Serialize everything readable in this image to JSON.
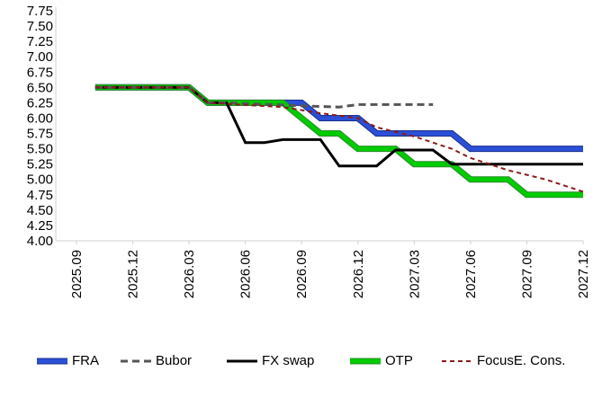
{
  "chart_data": {
    "type": "line",
    "title": "",
    "xlabel": "",
    "ylabel": "",
    "ylim": [
      4.0,
      7.75
    ],
    "yticks": [
      "4.00",
      "4.25",
      "4.50",
      "4.75",
      "5.00",
      "5.25",
      "5.50",
      "5.75",
      "6.00",
      "6.25",
      "6.50",
      "6.75",
      "7.00",
      "7.25",
      "7.50",
      "7.75"
    ],
    "xticks": [
      "2025.09",
      "2025.12",
      "2026.03",
      "2026.06",
      "2026.09",
      "2026.12",
      "2027.03",
      "2027.06",
      "2027.09",
      "2027.12"
    ],
    "grid": false,
    "legend_position": "bottom",
    "series": [
      {
        "name": "FRA",
        "color": "#2b4fd6",
        "style": "solid-thick",
        "points": [
          [
            "2025.10",
            6.5
          ],
          [
            "2026.03",
            6.5
          ],
          [
            "2026.04",
            6.25
          ],
          [
            "2026.09",
            6.25
          ],
          [
            "2026.10",
            6.0
          ],
          [
            "2026.12",
            6.0
          ],
          [
            "2027.01",
            5.75
          ],
          [
            "2027.05",
            5.75
          ],
          [
            "2027.06",
            5.5
          ],
          [
            "2027.12",
            5.5
          ]
        ]
      },
      {
        "name": "Bubor",
        "color": "#555555",
        "style": "dashed",
        "points": [
          [
            "2025.10",
            6.5
          ],
          [
            "2026.03",
            6.5
          ],
          [
            "2026.04",
            6.25
          ],
          [
            "2026.05",
            6.25
          ],
          [
            "2026.09",
            6.2
          ],
          [
            "2026.11",
            6.18
          ],
          [
            "2026.12",
            6.22
          ],
          [
            "2027.04",
            6.22
          ]
        ]
      },
      {
        "name": "FX swap",
        "color": "#000000",
        "style": "solid",
        "points": [
          [
            "2025.10",
            6.5
          ],
          [
            "2026.03",
            6.5
          ],
          [
            "2026.04",
            6.25
          ],
          [
            "2026.05",
            6.25
          ],
          [
            "2026.06",
            5.6
          ],
          [
            "2026.07",
            5.6
          ],
          [
            "2026.08",
            5.65
          ],
          [
            "2026.10",
            5.65
          ],
          [
            "2026.11",
            5.22
          ],
          [
            "2027.01",
            5.22
          ],
          [
            "2027.02",
            5.48
          ],
          [
            "2027.04",
            5.48
          ],
          [
            "2027.05",
            5.25
          ],
          [
            "2027.12",
            5.25
          ]
        ]
      },
      {
        "name": "OTP",
        "color": "#00cc00",
        "style": "solid-thick",
        "points": [
          [
            "2025.10",
            6.5
          ],
          [
            "2026.03",
            6.5
          ],
          [
            "2026.04",
            6.25
          ],
          [
            "2026.08",
            6.25
          ],
          [
            "2026.10",
            5.75
          ],
          [
            "2026.11",
            5.75
          ],
          [
            "2026.12",
            5.5
          ],
          [
            "2027.02",
            5.5
          ],
          [
            "2027.03",
            5.25
          ],
          [
            "2027.05",
            5.25
          ],
          [
            "2027.06",
            5.0
          ],
          [
            "2027.08",
            5.0
          ],
          [
            "2027.09",
            4.75
          ],
          [
            "2027.12",
            4.75
          ]
        ]
      },
      {
        "name": "FocusE. Cons.",
        "color": "#8b1a1a",
        "style": "dashed-fine",
        "points": [
          [
            "2025.10",
            6.5
          ],
          [
            "2026.03",
            6.5
          ],
          [
            "2026.04",
            6.25
          ],
          [
            "2026.08",
            6.18
          ],
          [
            "2026.10",
            6.08
          ],
          [
            "2026.12",
            6.0
          ],
          [
            "2027.01",
            5.85
          ],
          [
            "2027.03",
            5.7
          ],
          [
            "2027.05",
            5.5
          ],
          [
            "2027.06",
            5.35
          ],
          [
            "2027.08",
            5.15
          ],
          [
            "2027.10",
            5.0
          ],
          [
            "2027.12",
            4.8
          ]
        ]
      }
    ]
  }
}
